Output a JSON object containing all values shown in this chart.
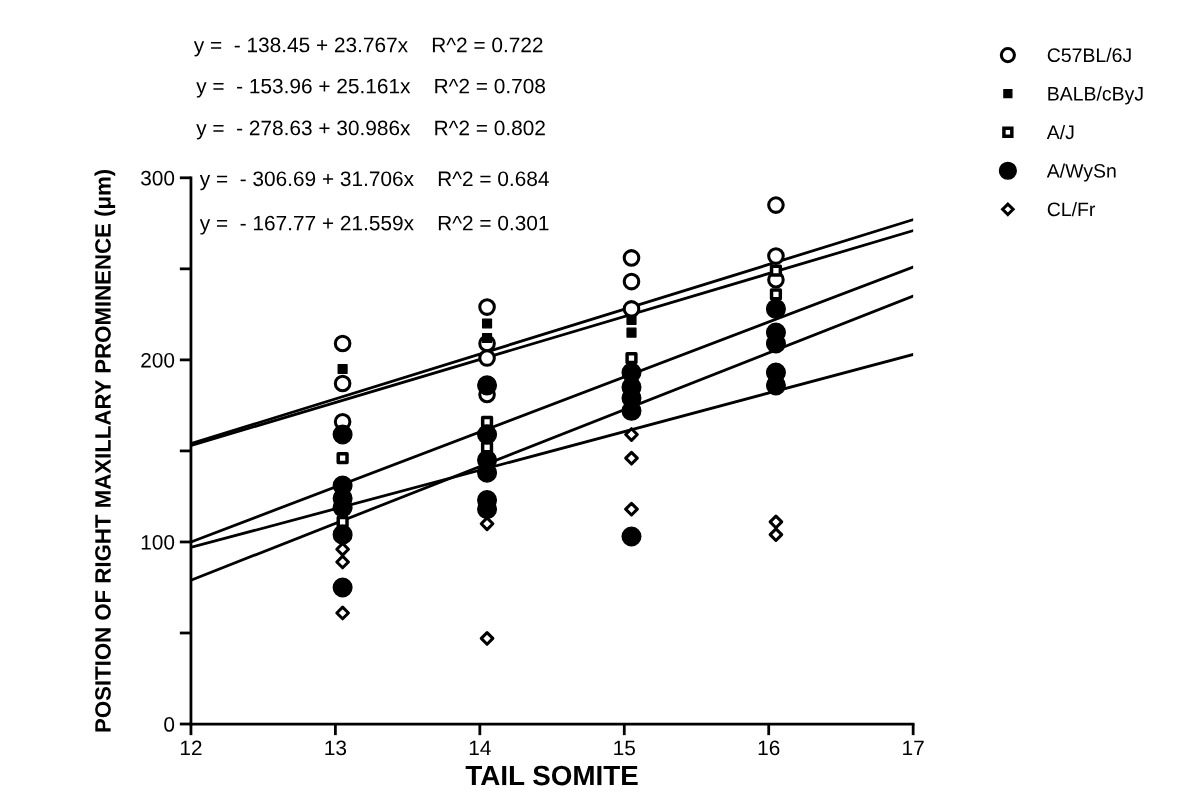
{
  "chart_data": {
    "type": "scatter",
    "xlabel": "TAIL SOMITE",
    "ylabel": "POSITION OF RIGHT MAXILLARY PROMINENCE (μm)",
    "xlim": [
      12,
      17
    ],
    "xticks": [
      12,
      13,
      14,
      15,
      16,
      17
    ],
    "ylim": [
      0,
      300
    ],
    "yticks": [
      0,
      {
        "value": 50,
        "label": null
      },
      100,
      {
        "value": 150,
        "label": null
      },
      200,
      {
        "value": 250,
        "label": null
      },
      300
    ],
    "legend": "top right",
    "grid": false,
    "series": [
      {
        "name": "C57BL/6J",
        "color": "#000000",
        "marker": "circle",
        "x": [
          13.05,
          13.05,
          13.05,
          14.05,
          14.05,
          14.05,
          14.05,
          15.05,
          15.05,
          15.05,
          16.05,
          16.05,
          16.05
        ],
        "values": [
          209,
          187,
          166,
          229,
          209,
          201,
          181,
          256,
          243,
          228,
          285,
          257,
          244
        ]
      },
      {
        "name": "BALB/cByJ",
        "color": "#000000",
        "marker": "square",
        "x": [
          13.05,
          14.05,
          14.05,
          15.05,
          15.05
        ],
        "values": [
          195,
          220,
          212,
          222,
          215
        ]
      },
      {
        "name": "A/J",
        "color": "#000000",
        "marker": "square",
        "x": [
          13.05,
          13.05,
          14.05,
          14.05,
          15.05,
          16.05,
          16.05
        ],
        "values": [
          146,
          111,
          166,
          152,
          201,
          249,
          236
        ]
      },
      {
        "name": "A/WySn",
        "color": "#000000",
        "marker": "circle",
        "x": [
          13.05,
          13.05,
          13.05,
          13.05,
          13.05,
          13.05,
          14.05,
          14.05,
          14.05,
          14.05,
          14.05,
          14.05,
          15.05,
          15.05,
          15.05,
          15.05,
          15.05,
          16.05,
          16.05,
          16.05,
          16.05,
          16.05
        ],
        "values": [
          159,
          131,
          124,
          119,
          104,
          75,
          186,
          159,
          145,
          138,
          123,
          118,
          193,
          185,
          179,
          172,
          103,
          228,
          215,
          209,
          193,
          186
        ]
      },
      {
        "name": "CL/Fr",
        "color": "#000000",
        "marker": "diamond",
        "x": [
          13.05,
          13.05,
          13.05,
          14.05,
          14.05,
          15.05,
          15.05,
          15.05,
          16.05,
          16.05
        ],
        "values": [
          96,
          89,
          61,
          110,
          47,
          159,
          146,
          118,
          111,
          104
        ]
      },
      {
        "type": "line",
        "color": "#000000",
        "x": [
          12,
          17
        ],
        "values": [
          154,
          277
        ]
      },
      {
        "type": "line",
        "color": "#000000",
        "x": [
          12,
          17
        ],
        "values": [
          153,
          271
        ]
      },
      {
        "type": "line",
        "color": "#000000",
        "x": [
          12,
          17
        ],
        "values": [
          100,
          251
        ]
      },
      {
        "type": "line",
        "color": "#000000",
        "x": [
          12,
          17
        ],
        "values": [
          79,
          235
        ]
      },
      {
        "type": "line",
        "color": "#000000",
        "x": [
          12,
          17
        ],
        "values": [
          97,
          203
        ]
      }
    ],
    "annotations": [
      "y =  - 138.45 + 23.767x    R^2 = 0.722",
      "y =  - 153.96 + 25.161x    R^2 = 0.708",
      "y =  - 278.63 + 30.986x    R^2 = 0.802",
      "y =  - 306.69 + 31.706x    R^2 = 0.684",
      "y =  - 167.77 + 21.559x    R^2 = 0.301"
    ]
  }
}
